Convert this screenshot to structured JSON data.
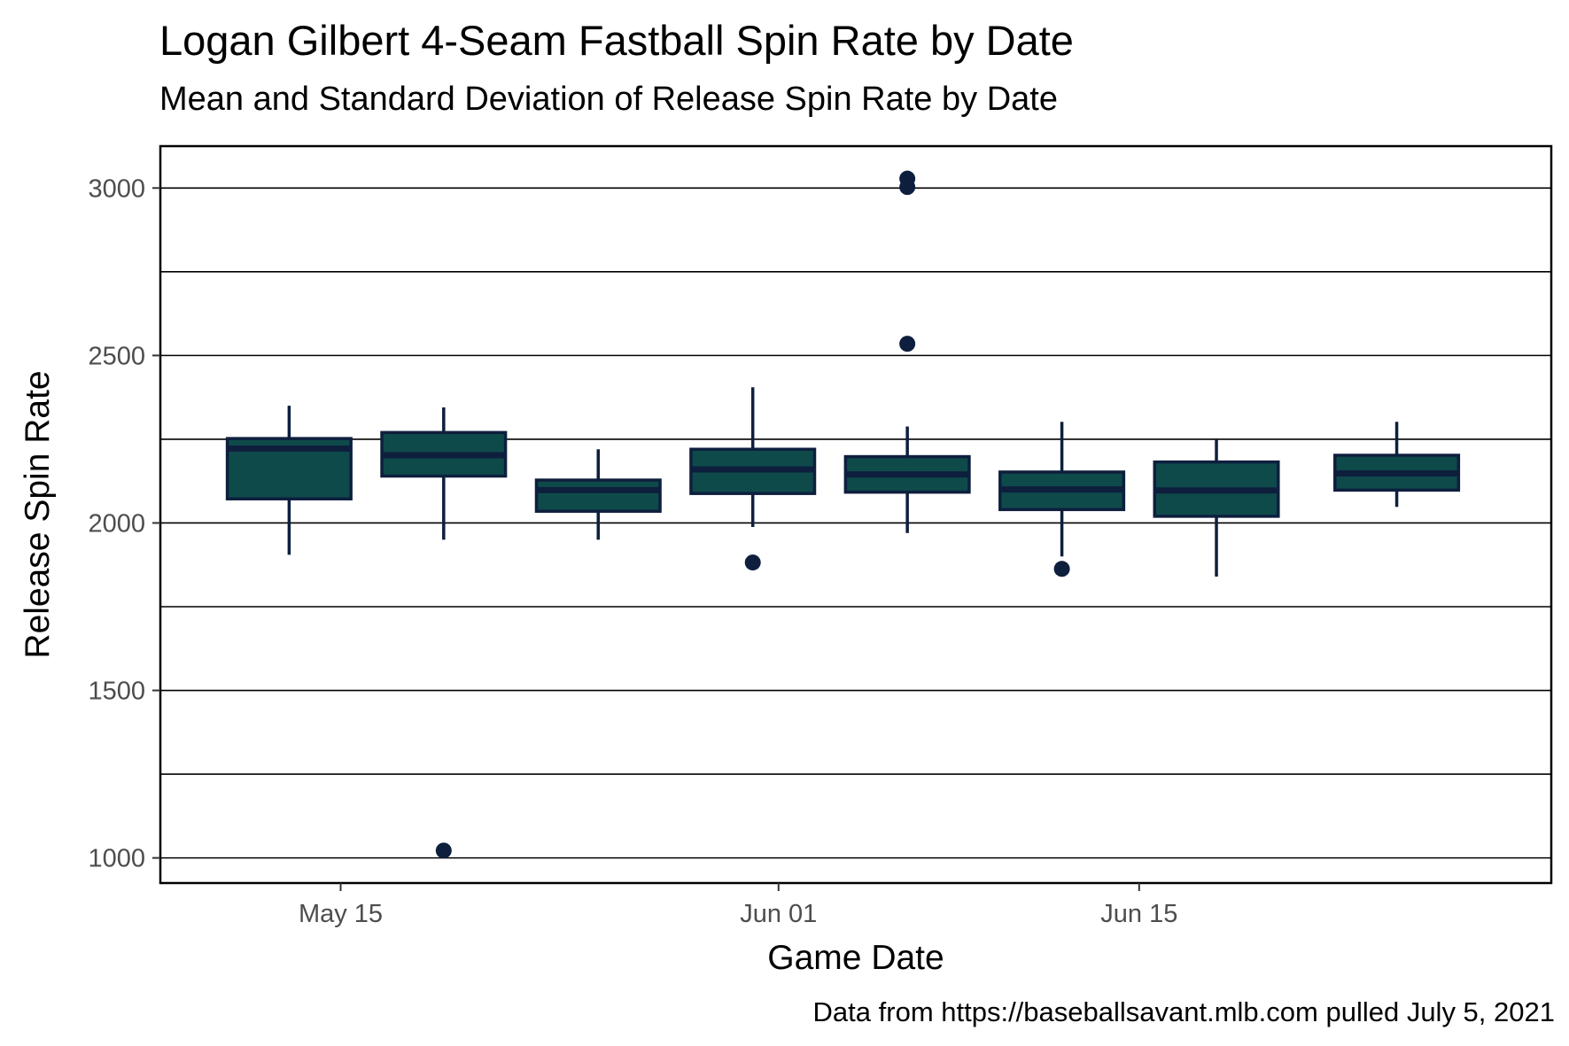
{
  "chart_data": {
    "type": "box",
    "title": "Logan Gilbert 4-Seam Fastball Spin Rate by Date",
    "subtitle": "Mean and Standard Deviation of Release Spin Rate by Date",
    "caption": "Data from https://baseballsavant.mlb.com pulled July 5, 2021",
    "xlabel": "Game Date",
    "ylabel": "Release Spin Rate",
    "x_tick_labels": [
      {
        "date": "2021-05-15",
        "label": "May 15"
      },
      {
        "date": "2021-06-01",
        "label": "Jun 01"
      },
      {
        "date": "2021-06-15",
        "label": "Jun 15"
      }
    ],
    "xlim": [
      "2021-05-08",
      "2021-07-01"
    ],
    "y_ticks": [
      1000,
      1500,
      2000,
      2500,
      3000
    ],
    "ylim": [
      925,
      3125
    ],
    "grid": "major and minor horizontal",
    "box_fill": "#0f4a4a",
    "box_line": "#0e1f3e",
    "point_color": "#0e1f3e",
    "series": [
      {
        "date": "2021-05-13",
        "whisker_low": 1905,
        "q1": 2072,
        "median": 2222,
        "q3": 2252,
        "whisker_high": 2350,
        "outliers": []
      },
      {
        "date": "2021-05-19",
        "whisker_low": 1950,
        "q1": 2140,
        "median": 2202,
        "q3": 2270,
        "whisker_high": 2345,
        "outliers": [
          1022
        ]
      },
      {
        "date": "2021-05-25",
        "whisker_low": 1950,
        "q1": 2035,
        "median": 2098,
        "q3": 2128,
        "whisker_high": 2220,
        "outliers": []
      },
      {
        "date": "2021-05-31",
        "whisker_low": 1988,
        "q1": 2088,
        "median": 2160,
        "q3": 2220,
        "whisker_high": 2405,
        "outliers": [
          1882
        ]
      },
      {
        "date": "2021-06-06",
        "whisker_low": 1970,
        "q1": 2092,
        "median": 2145,
        "q3": 2198,
        "whisker_high": 2288,
        "outliers": [
          2535,
          3003,
          3028
        ]
      },
      {
        "date": "2021-06-12",
        "whisker_low": 1900,
        "q1": 2040,
        "median": 2100,
        "q3": 2152,
        "whisker_high": 2302,
        "outliers": [
          1863
        ]
      },
      {
        "date": "2021-06-18",
        "whisker_low": 1840,
        "q1": 2020,
        "median": 2097,
        "q3": 2182,
        "whisker_high": 2248,
        "outliers": []
      },
      {
        "date": "2021-06-25",
        "whisker_low": 2048,
        "q1": 2098,
        "median": 2148,
        "q3": 2202,
        "whisker_high": 2302,
        "outliers": []
      }
    ]
  }
}
